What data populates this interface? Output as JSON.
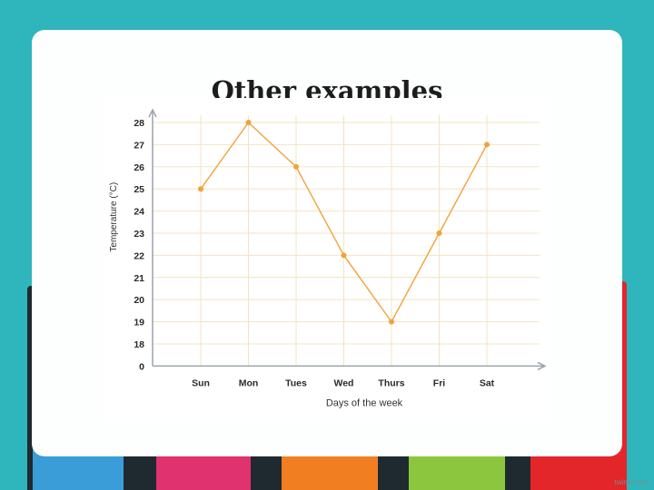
{
  "slide": {
    "title": "Other examples",
    "watermark": "twinkl.com"
  },
  "colors": {
    "background": "#2fb6bd",
    "line": "#f0a33a",
    "grid": "#f3e4c2",
    "tabs": [
      "#3a9dd8",
      "#e0326e",
      "#f27e22",
      "#8cc63e",
      "#e2262a"
    ]
  },
  "chart_data": {
    "type": "line",
    "title": "",
    "xlabel": "Days of the week",
    "ylabel": "Temperature (°C)",
    "categories": [
      "Sun",
      "Mon",
      "Tues",
      "Wed",
      "Thurs",
      "Fri",
      "Sat"
    ],
    "series": [
      {
        "values": [
          25,
          28,
          26,
          22,
          19,
          23,
          27
        ]
      }
    ],
    "y_ticks": [
      "28",
      "27",
      "26",
      "25",
      "24",
      "23",
      "22",
      "21",
      "20",
      "19",
      "18",
      "0"
    ],
    "y_axis_break": "0 to 17 omitted",
    "ylim": [
      17,
      28
    ],
    "grid": true,
    "legend": "none"
  }
}
